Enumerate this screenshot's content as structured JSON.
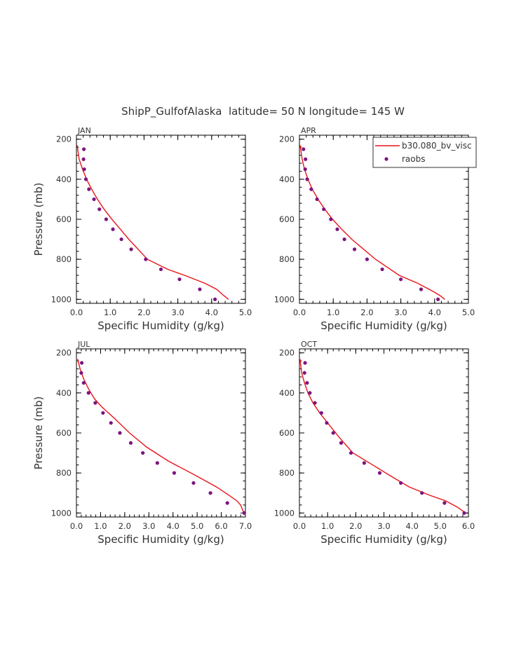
{
  "title": "ShipP_GulfofAlaska  latitude= 50 N longitude= 145 W",
  "colors": {
    "model": "#e8141a",
    "obs": "#7e147e",
    "axis": "#000000",
    "text": "#333333"
  },
  "chart_data": [
    {
      "type": "line",
      "label": "JAN",
      "xlabel": "Specific Humidity (g/kg)",
      "ylabel": "Pressure (mb)",
      "xlim": [
        0,
        5
      ],
      "ylim": [
        1020,
        180
      ],
      "xticks": [
        "0.0",
        "1.0",
        "2.0",
        "3.0",
        "4.0",
        "5.0"
      ],
      "yticks": [
        "200",
        "400",
        "600",
        "800",
        "1000"
      ],
      "series": [
        {
          "name": "b30.080_bv_visc",
          "kind": "line",
          "x": [
            0.02,
            0.08,
            0.18,
            0.3,
            0.45,
            0.62,
            0.82,
            1.05,
            1.3,
            1.55,
            2.1,
            2.7,
            3.2,
            3.8,
            4.15,
            4.35,
            4.5
          ],
          "y": [
            230,
            300,
            350,
            400,
            450,
            500,
            550,
            600,
            650,
            700,
            800,
            850,
            880,
            920,
            950,
            980,
            1000
          ]
        },
        {
          "name": "raobs",
          "kind": "scatter",
          "x": [
            0.22,
            0.21,
            0.23,
            0.28,
            0.37,
            0.52,
            0.68,
            0.88,
            1.08,
            1.33,
            1.62,
            2.05,
            2.5,
            3.05,
            3.65,
            4.1
          ],
          "y": [
            250,
            300,
            350,
            400,
            450,
            500,
            550,
            600,
            650,
            700,
            750,
            800,
            850,
            900,
            950,
            1000
          ]
        }
      ]
    },
    {
      "type": "line",
      "label": "APR",
      "xlabel": "Specific Humidity (g/kg)",
      "ylabel": "",
      "xlim": [
        0,
        5
      ],
      "ylim": [
        1020,
        180
      ],
      "xticks": [
        "0.0",
        "1.0",
        "2.0",
        "3.0",
        "4.0",
        "5.0"
      ],
      "yticks": [
        "200",
        "400",
        "600",
        "800",
        "1000"
      ],
      "series": [
        {
          "name": "b30.080_bv_visc",
          "kind": "line",
          "x": [
            0.02,
            0.08,
            0.15,
            0.25,
            0.38,
            0.55,
            0.75,
            0.98,
            1.25,
            1.55,
            2.25,
            2.95,
            3.5,
            3.95,
            4.15,
            4.3
          ],
          "y": [
            230,
            300,
            350,
            400,
            450,
            500,
            550,
            600,
            650,
            700,
            800,
            880,
            920,
            960,
            980,
            1000
          ]
        },
        {
          "name": "raobs",
          "kind": "scatter",
          "x": [
            0.12,
            0.18,
            0.17,
            0.23,
            0.35,
            0.52,
            0.72,
            0.93,
            1.12,
            1.33,
            1.63,
            2.0,
            2.45,
            3.0,
            3.6,
            4.1
          ],
          "y": [
            250,
            300,
            350,
            400,
            450,
            500,
            550,
            600,
            650,
            700,
            750,
            800,
            850,
            900,
            950,
            1000
          ]
        }
      ]
    },
    {
      "type": "line",
      "label": "JUL",
      "xlabel": "Specific Humidity (g/kg)",
      "ylabel": "Pressure (mb)",
      "xlim": [
        0,
        7
      ],
      "ylim": [
        1020,
        180
      ],
      "xticks": [
        "0.0",
        "1.0",
        "2.0",
        "3.0",
        "4.0",
        "5.0",
        "6.0",
        "7.0"
      ],
      "yticks": [
        "200",
        "400",
        "600",
        "800",
        "1000"
      ],
      "series": [
        {
          "name": "b30.080_bv_visc",
          "kind": "line",
          "x": [
            0.05,
            0.15,
            0.3,
            0.5,
            0.75,
            1.05,
            1.6,
            2.2,
            2.9,
            3.8,
            4.9,
            5.8,
            6.3,
            6.65,
            6.8,
            6.9,
            7.0
          ],
          "y": [
            230,
            280,
            330,
            380,
            430,
            470,
            530,
            600,
            670,
            740,
            810,
            870,
            910,
            940,
            960,
            990,
            1010
          ]
        },
        {
          "name": "raobs",
          "kind": "scatter",
          "x": [
            0.22,
            0.2,
            0.3,
            0.5,
            0.78,
            1.1,
            1.43,
            1.8,
            2.25,
            2.75,
            3.35,
            4.05,
            4.85,
            5.55,
            6.25,
            6.95
          ],
          "y": [
            250,
            300,
            350,
            400,
            450,
            500,
            550,
            600,
            650,
            700,
            750,
            800,
            850,
            900,
            950,
            1000
          ]
        }
      ]
    },
    {
      "type": "line",
      "label": "OCT",
      "xlabel": "Specific Humidity (g/kg)",
      "ylabel": "",
      "xlim": [
        0,
        6
      ],
      "ylim": [
        1020,
        180
      ],
      "xticks": [
        "0.0",
        "1.0",
        "2.0",
        "3.0",
        "4.0",
        "5.0",
        "6.0"
      ],
      "yticks": [
        "200",
        "400",
        "600",
        "800",
        "1000"
      ],
      "series": [
        {
          "name": "b30.080_bv_visc",
          "kind": "line",
          "x": [
            0.02,
            0.08,
            0.18,
            0.3,
            0.48,
            0.72,
            1.0,
            1.4,
            1.9,
            2.6,
            3.3,
            3.9,
            4.6,
            5.2,
            5.6,
            5.8,
            5.9
          ],
          "y": [
            230,
            300,
            350,
            400,
            450,
            500,
            550,
            620,
            700,
            760,
            820,
            870,
            910,
            940,
            970,
            990,
            1000
          ]
        },
        {
          "name": "raobs",
          "kind": "scatter",
          "x": [
            0.2,
            0.18,
            0.27,
            0.37,
            0.55,
            0.78,
            0.97,
            1.2,
            1.48,
            1.83,
            2.3,
            2.85,
            3.6,
            4.35,
            5.15,
            5.85
          ],
          "y": [
            250,
            300,
            350,
            400,
            450,
            500,
            550,
            600,
            650,
            700,
            750,
            800,
            850,
            900,
            950,
            1000
          ]
        }
      ]
    }
  ],
  "legend": {
    "placement": "top-right of APR panel",
    "items": [
      {
        "label": "b30.080_bv_visc",
        "kind": "line"
      },
      {
        "label": "raobs",
        "kind": "scatter"
      }
    ]
  }
}
